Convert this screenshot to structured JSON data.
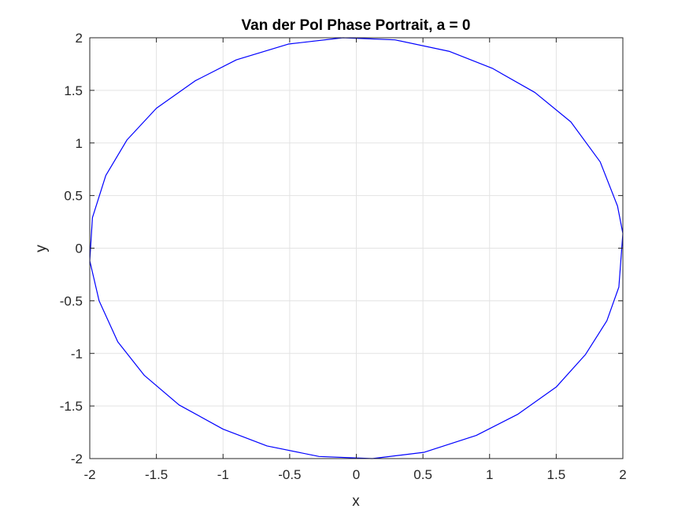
{
  "chart_data": {
    "type": "line",
    "title": "Van der Pol Phase Portrait, a = 0",
    "xlabel": "x",
    "ylabel": "y",
    "xlim": [
      -2,
      2
    ],
    "ylim": [
      -2,
      2
    ],
    "xticks": [
      -2,
      -1.5,
      -1,
      -0.5,
      0,
      0.5,
      1,
      1.5,
      2
    ],
    "xtick_labels": [
      "-2",
      "-1.5",
      "-1",
      "-0.5",
      "0",
      "0.5",
      "1",
      "1.5",
      "2"
    ],
    "yticks": [
      -2,
      -1.5,
      -1,
      -0.5,
      0,
      0.5,
      1,
      1.5,
      2
    ],
    "ytick_labels": [
      "-2",
      "-1.5",
      "-1",
      "-0.5",
      "0",
      "0.5",
      "1",
      "1.5",
      "2"
    ],
    "grid": true,
    "series": [
      {
        "color": "#0000ff",
        "x": [
          2.0,
          1.97,
          1.88,
          1.72,
          1.5,
          1.21,
          0.9,
          0.51,
          0.12,
          -0.28,
          -0.67,
          -1.0,
          -1.33,
          -1.59,
          -1.79,
          -1.93,
          -2.0,
          -1.98,
          -1.88,
          -1.72,
          -1.5,
          -1.21,
          -0.9,
          -0.51,
          -0.1,
          0.29,
          0.7,
          1.02,
          1.34,
          1.61,
          1.83,
          1.96,
          2.0
        ],
        "y": [
          0.14,
          -0.37,
          -0.69,
          -1.01,
          -1.32,
          -1.58,
          -1.78,
          -1.94,
          -2.0,
          -1.98,
          -1.88,
          -1.72,
          -1.49,
          -1.21,
          -0.89,
          -0.5,
          -0.12,
          0.29,
          0.69,
          1.03,
          1.33,
          1.59,
          1.79,
          1.94,
          2.0,
          1.98,
          1.87,
          1.71,
          1.48,
          1.2,
          0.82,
          0.4,
          0.14
        ]
      }
    ]
  }
}
